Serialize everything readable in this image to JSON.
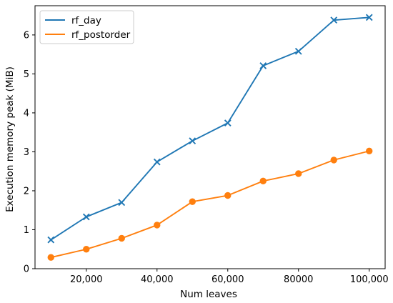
{
  "chart_data": {
    "type": "line",
    "title": "",
    "xlabel": "Num leaves",
    "ylabel": "Execution memory peak (MiB)",
    "x": [
      10000,
      20000,
      30000,
      40000,
      50000,
      60000,
      70000,
      80000,
      90000,
      100000
    ],
    "x_tick_values": [
      20000,
      40000,
      60000,
      80000,
      100000
    ],
    "x_tick_labels": [
      "20,000",
      "40,000",
      "60,000",
      "80000",
      "100,000"
    ],
    "y_tick_values": [
      0,
      1,
      2,
      3,
      4,
      5,
      6
    ],
    "y_tick_labels": [
      "0",
      "1",
      "2",
      "3",
      "4",
      "5",
      "6"
    ],
    "xlim": [
      5500,
      104500
    ],
    "ylim": [
      0,
      6.75
    ],
    "grid": false,
    "legend_position": "top-left",
    "series": [
      {
        "name": "rf_day",
        "color": "#1f77b4",
        "marker": "x",
        "values": [
          0.74,
          1.33,
          1.7,
          2.74,
          3.28,
          3.74,
          5.21,
          5.58,
          6.38,
          6.45
        ]
      },
      {
        "name": "rf_postorder",
        "color": "#ff7f0e",
        "marker": "circle",
        "values": [
          0.29,
          0.5,
          0.78,
          1.12,
          1.72,
          1.88,
          2.25,
          2.44,
          2.79,
          3.02
        ]
      }
    ]
  }
}
